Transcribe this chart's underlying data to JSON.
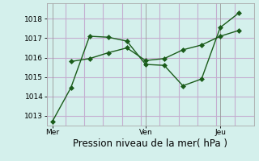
{
  "xlabel": "Pression niveau de la mer( hPa )",
  "background_color": "#d4f0ec",
  "grid_color": "#c4aed0",
  "line_color": "#1a5c1a",
  "ylim": [
    1012.5,
    1018.8
  ],
  "yticks": [
    1013,
    1014,
    1015,
    1016,
    1017,
    1018
  ],
  "xtick_labels": [
    "Mer",
    "Ven",
    "Jeu"
  ],
  "xtick_positions": [
    0,
    5,
    9
  ],
  "vline_x": [
    0,
    5,
    9
  ],
  "line1_x": [
    0,
    1,
    2,
    3,
    4,
    5,
    6,
    7,
    8,
    9,
    10
  ],
  "line1_y": [
    1012.7,
    1014.45,
    1017.1,
    1017.05,
    1016.85,
    1015.65,
    1015.6,
    1014.55,
    1014.9,
    1017.55,
    1018.3
  ],
  "line2_x": [
    1,
    2,
    3,
    4,
    5,
    6,
    7,
    8,
    9,
    10
  ],
  "line2_y": [
    1015.8,
    1015.95,
    1016.25,
    1016.5,
    1015.85,
    1015.95,
    1016.4,
    1016.65,
    1017.1,
    1017.4
  ],
  "marker": "D",
  "marker_size": 3,
  "line_width": 1.0,
  "tick_fontsize": 6.5,
  "xlabel_fontsize": 8.5,
  "xlim": [
    -0.3,
    10.8
  ],
  "num_vgrid": 12
}
